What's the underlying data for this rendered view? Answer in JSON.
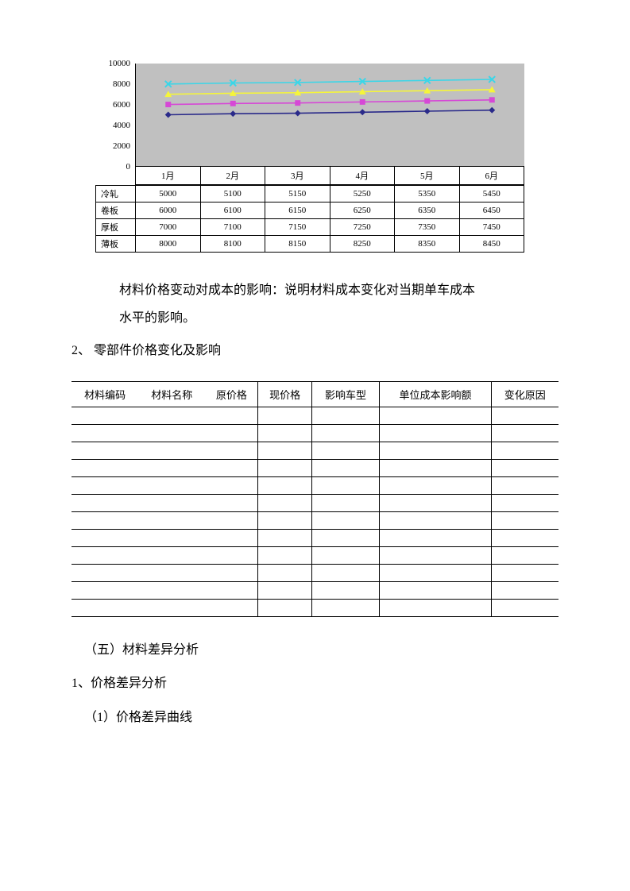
{
  "chart": {
    "type": "line",
    "background_color": "#c0c0c0",
    "ylim": [
      0,
      10000
    ],
    "ytick_step": 2000,
    "yticks": [
      "0",
      "2000",
      "4000",
      "6000",
      "8000",
      "10000"
    ],
    "x_categories": [
      "1月",
      "2月",
      "3月",
      "4月",
      "5月",
      "6月"
    ],
    "series": [
      {
        "name": "冷轧",
        "color": "#2a2a8a",
        "marker": "diamond",
        "values": [
          5000,
          5100,
          5150,
          5250,
          5350,
          5450
        ]
      },
      {
        "name": "卷板",
        "color": "#d648d6",
        "marker": "square",
        "values": [
          6000,
          6100,
          6150,
          6250,
          6350,
          6450
        ]
      },
      {
        "name": "厚板",
        "color": "#f5f53a",
        "marker": "triangle",
        "values": [
          7000,
          7100,
          7150,
          7250,
          7350,
          7450
        ]
      },
      {
        "name": "薄板",
        "color": "#3ad6e8",
        "marker": "x",
        "values": [
          8000,
          8100,
          8150,
          8250,
          8350,
          8450
        ]
      }
    ],
    "axis_fontsize": 11,
    "line_width": 1.6
  },
  "text": {
    "para1a": "材料价格变动对成本的影响：说明材料成本变化对当期单车成本",
    "para1b": "水平的影响。",
    "sec2": "2、  零部件价格变化及影响",
    "h5": "（五）材料差异分析",
    "h5_1": "1、价格差异分析",
    "h5_1_1": "（1）价格差异曲线"
  },
  "parts_table": {
    "columns": [
      "材料编码",
      "材料名称",
      "原价格",
      "现价格",
      "影响车型",
      "单位成本影响额",
      "变化原因"
    ],
    "row_count": 12
  }
}
